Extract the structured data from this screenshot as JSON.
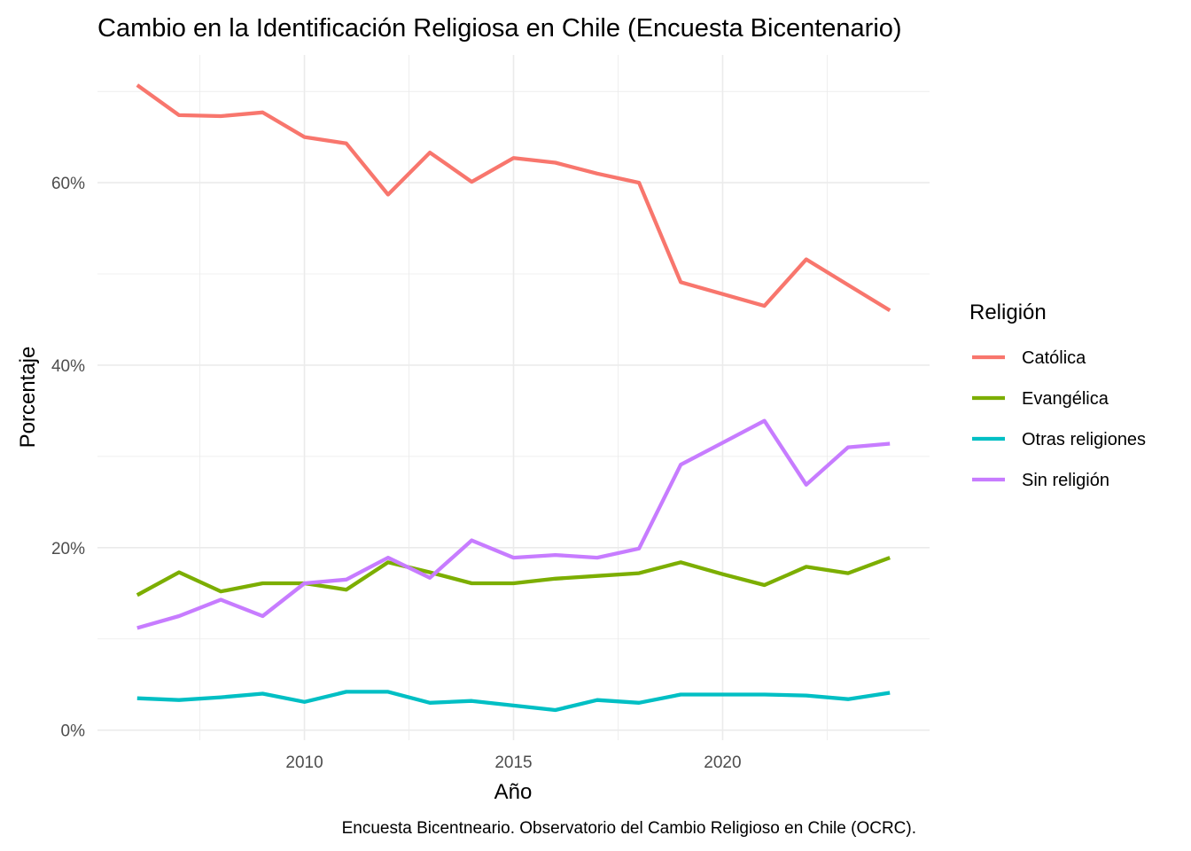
{
  "chart_data": {
    "type": "line",
    "title": "Cambio en la Identificación Religiosa en Chile (Encuesta Bicentenario)",
    "xlabel": "Año",
    "ylabel": "Porcentaje",
    "caption": "Encuesta Bicentneario. Observatorio del Cambio Religioso en Chile (OCRC).",
    "x": [
      2006,
      2007,
      2008,
      2009,
      2010,
      2011,
      2012,
      2013,
      2014,
      2015,
      2016,
      2017,
      2018,
      2019,
      2020,
      2021,
      2022,
      2023,
      2024
    ],
    "xlim": [
      2005.05,
      2024.95
    ],
    "ylim": [
      -1.1,
      74.0
    ],
    "x_ticks": [
      2010,
      2015,
      2020
    ],
    "x_tick_labels": [
      "2010",
      "2015",
      "2020"
    ],
    "x_minor": [
      2007.5,
      2012.5,
      2017.5,
      2022.5
    ],
    "y_ticks": [
      0,
      20,
      40,
      60
    ],
    "y_tick_labels": [
      "0%",
      "20%",
      "40%",
      "60%"
    ],
    "y_minor": [
      10,
      30,
      50,
      70
    ],
    "grid": true,
    "legend": {
      "title": "Religión",
      "position": "right"
    },
    "series": [
      {
        "name": "Católica",
        "color": "#F8766D",
        "values": [
          70.7,
          67.4,
          67.3,
          67.7,
          65.0,
          64.3,
          58.7,
          63.3,
          60.1,
          62.7,
          62.2,
          61.0,
          60.0,
          49.1,
          47.8,
          46.5,
          51.6,
          48.8,
          46.0
        ]
      },
      {
        "name": "Evangélica",
        "color": "#7CAE00",
        "values": [
          14.8,
          17.3,
          15.2,
          16.1,
          16.1,
          15.4,
          18.4,
          17.3,
          16.1,
          16.1,
          16.6,
          16.9,
          17.2,
          18.4,
          17.1,
          15.9,
          17.9,
          17.2,
          18.9
        ]
      },
      {
        "name": "Otras religiones",
        "color": "#00BFC4",
        "values": [
          3.5,
          3.3,
          3.6,
          4.0,
          3.1,
          4.2,
          4.2,
          3.0,
          3.2,
          2.7,
          2.2,
          3.3,
          3.0,
          3.9,
          3.9,
          3.9,
          3.8,
          3.4,
          4.1
        ]
      },
      {
        "name": "Sin religión",
        "color": "#C77CFF",
        "values": [
          11.2,
          12.5,
          14.3,
          12.5,
          16.1,
          16.5,
          18.9,
          16.7,
          20.8,
          18.9,
          19.2,
          18.9,
          19.9,
          29.1,
          31.5,
          33.9,
          26.9,
          31.0,
          31.4
        ]
      }
    ]
  }
}
